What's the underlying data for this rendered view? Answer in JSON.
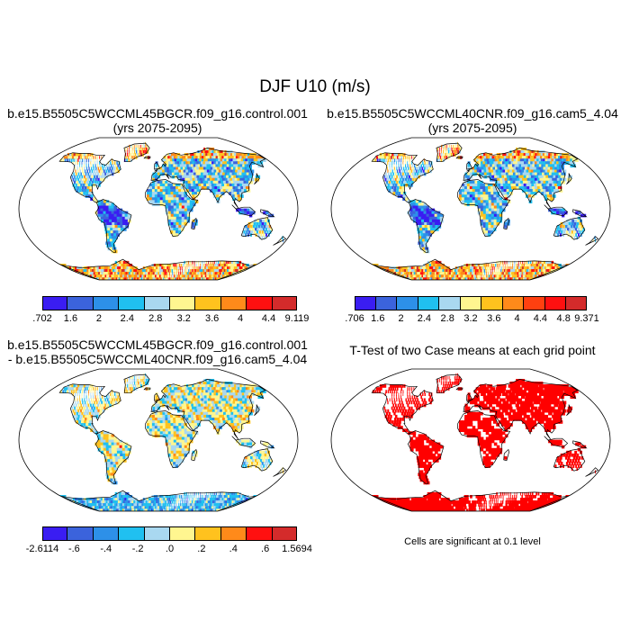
{
  "title": "DJF U10 (m/s)",
  "panels": {
    "p1": {
      "title_line1": "b.e15.B5505C5WCCML45BGCR.f09_g16.control.001",
      "title_line2": "(yrs 2075-2095)",
      "colorbar_labels": [
        ".702",
        "1.6",
        "2",
        "2.4",
        "2.8",
        "3.2",
        "3.6",
        "4",
        "4.4",
        "9.119"
      ]
    },
    "p2": {
      "title_line1": "b.e15.B5505C5WCCML40CNR.f09_g16.cam5_4.04",
      "title_line2": "(yrs 2075-2095)",
      "colorbar_labels": [
        ".706",
        "1.6",
        "2",
        "2.4",
        "2.8",
        "3.2",
        "3.6",
        "4",
        "4.4",
        "4.8",
        "9.371"
      ]
    },
    "p3": {
      "title_line1": "b.e15.B5505C5WCCML45BGCR.f09_g16.control.001",
      "title_line2": "- b.e15.B5505C5WCCML40CNR.f09_g16.cam5_4.04",
      "colorbar_labels": [
        "-2.6114",
        "-.6",
        "-.4",
        "-.2",
        ".0",
        ".2",
        ".4",
        ".6",
        "1.5694"
      ]
    },
    "p4": {
      "title_line1": "T-Test of two Case means at each grid point",
      "note": "Cells are significant at 0.1 level"
    }
  },
  "colors": {
    "abs_scale": [
      "#3a1df2",
      "#3b63dc",
      "#2d90e8",
      "#20c0f0",
      "#a9d8f0",
      "#fff690",
      "#ffc21e",
      "#ff8a1a",
      "#ff1010",
      "#d42b2b"
    ],
    "abs_scale_11": [
      "#3a1df2",
      "#3b63dc",
      "#2d90e8",
      "#20c0f0",
      "#a9d8f0",
      "#fff690",
      "#ffc21e",
      "#ff8a1a",
      "#ff4010",
      "#ff1010",
      "#d42b2b"
    ],
    "diff_scale": [
      "#3a1df2",
      "#3b63dc",
      "#2d90e8",
      "#20c0f0",
      "#a9d8f0",
      "#fff690",
      "#ffc21e",
      "#ff8a1a",
      "#ff1010",
      "#d42b2b"
    ],
    "significance": "#ff0000"
  }
}
